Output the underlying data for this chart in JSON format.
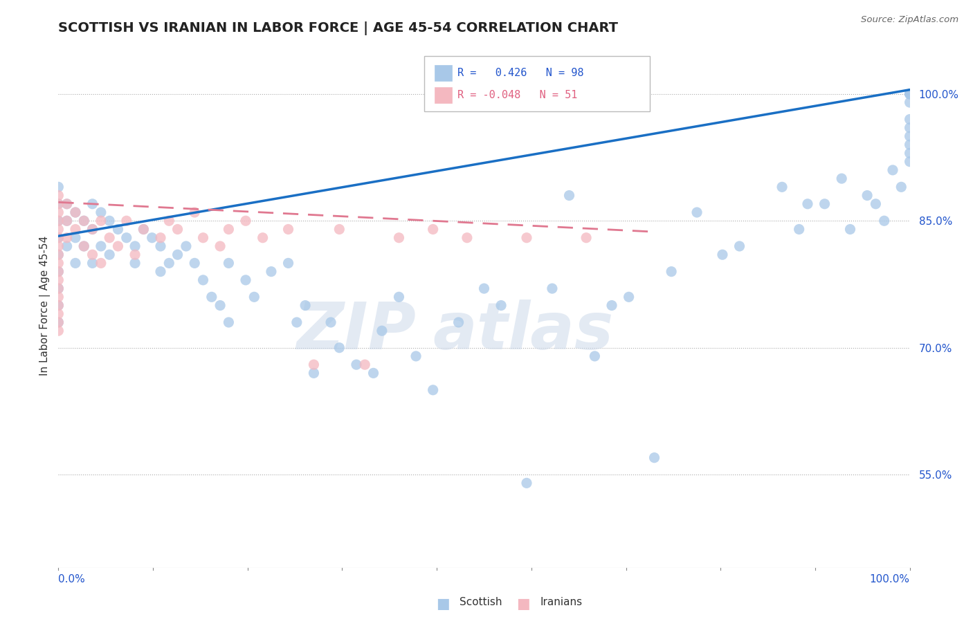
{
  "title": "SCOTTISH VS IRANIAN IN LABOR FORCE | AGE 45-54 CORRELATION CHART",
  "source": "Source: ZipAtlas.com",
  "ylabel": "In Labor Force | Age 45-54",
  "xmin": 0.0,
  "xmax": 1.0,
  "ymin": 0.44,
  "ymax": 1.06,
  "watermark_zip": "ZIP",
  "watermark_atlas": "atlas",
  "blue_R": 0.426,
  "blue_N": 98,
  "pink_R": -0.048,
  "pink_N": 51,
  "blue_color": "#a8c8e8",
  "pink_color": "#f4b8c0",
  "blue_line_color": "#1a6fc4",
  "pink_line_color": "#e07890",
  "legend_label_blue": "Scottish",
  "legend_label_pink": "Iranians",
  "ytick_positions": [
    0.55,
    0.7,
    0.85,
    1.0
  ],
  "ytick_labels": [
    "55.0%",
    "70.0%",
    "85.0%",
    "100.0%"
  ],
  "blue_line_x0": 0.0,
  "blue_line_x1": 1.0,
  "blue_line_y0": 0.832,
  "blue_line_y1": 1.005,
  "pink_line_x0": 0.0,
  "pink_line_x1": 0.7,
  "pink_line_y0": 0.872,
  "pink_line_y1": 0.837,
  "blue_scatter_x": [
    0.0,
    0.0,
    0.0,
    0.0,
    0.0,
    0.0,
    0.0,
    0.0,
    0.0,
    0.01,
    0.01,
    0.01,
    0.02,
    0.02,
    0.02,
    0.03,
    0.03,
    0.04,
    0.04,
    0.04,
    0.05,
    0.05,
    0.06,
    0.06,
    0.07,
    0.08,
    0.09,
    0.09,
    0.1,
    0.11,
    0.12,
    0.12,
    0.13,
    0.14,
    0.15,
    0.16,
    0.17,
    0.18,
    0.19,
    0.2,
    0.2,
    0.22,
    0.23,
    0.25,
    0.27,
    0.28,
    0.29,
    0.3,
    0.32,
    0.33,
    0.35,
    0.37,
    0.38,
    0.4,
    0.42,
    0.44,
    0.47,
    0.5,
    0.52,
    0.55,
    0.58,
    0.6,
    0.63,
    0.65,
    0.67,
    0.7,
    0.72,
    0.75,
    0.78,
    0.8,
    0.85,
    0.87,
    0.88,
    0.9,
    0.92,
    0.93,
    0.95,
    0.96,
    0.97,
    0.98,
    0.99,
    1.0,
    1.0,
    1.0,
    1.0,
    1.0,
    1.0,
    1.0,
    1.0,
    1.0,
    1.0
  ],
  "blue_scatter_y": [
    0.89,
    0.87,
    0.85,
    0.83,
    0.81,
    0.79,
    0.77,
    0.75,
    0.73,
    0.87,
    0.85,
    0.82,
    0.86,
    0.83,
    0.8,
    0.85,
    0.82,
    0.87,
    0.84,
    0.8,
    0.86,
    0.82,
    0.85,
    0.81,
    0.84,
    0.83,
    0.82,
    0.8,
    0.84,
    0.83,
    0.82,
    0.79,
    0.8,
    0.81,
    0.82,
    0.8,
    0.78,
    0.76,
    0.75,
    0.8,
    0.73,
    0.78,
    0.76,
    0.79,
    0.8,
    0.73,
    0.75,
    0.67,
    0.73,
    0.7,
    0.68,
    0.67,
    0.72,
    0.76,
    0.69,
    0.65,
    0.73,
    0.77,
    0.75,
    0.54,
    0.77,
    0.88,
    0.69,
    0.75,
    0.76,
    0.57,
    0.79,
    0.86,
    0.81,
    0.82,
    0.89,
    0.84,
    0.87,
    0.87,
    0.9,
    0.84,
    0.88,
    0.87,
    0.85,
    0.91,
    0.89,
    0.92,
    0.96,
    0.95,
    0.93,
    0.97,
    0.94,
    0.99,
    1.0,
    1.0,
    1.0
  ],
  "pink_scatter_x": [
    0.0,
    0.0,
    0.0,
    0.0,
    0.0,
    0.0,
    0.0,
    0.0,
    0.0,
    0.0,
    0.0,
    0.0,
    0.0,
    0.0,
    0.0,
    0.0,
    0.0,
    0.01,
    0.01,
    0.01,
    0.02,
    0.02,
    0.03,
    0.03,
    0.04,
    0.04,
    0.05,
    0.05,
    0.06,
    0.07,
    0.08,
    0.09,
    0.1,
    0.12,
    0.13,
    0.14,
    0.16,
    0.17,
    0.19,
    0.2,
    0.22,
    0.24,
    0.27,
    0.3,
    0.33,
    0.36,
    0.4,
    0.44,
    0.48,
    0.55,
    0.62
  ],
  "pink_scatter_y": [
    0.88,
    0.87,
    0.86,
    0.85,
    0.84,
    0.83,
    0.82,
    0.81,
    0.8,
    0.79,
    0.78,
    0.77,
    0.76,
    0.75,
    0.74,
    0.73,
    0.72,
    0.87,
    0.85,
    0.83,
    0.86,
    0.84,
    0.85,
    0.82,
    0.84,
    0.81,
    0.85,
    0.8,
    0.83,
    0.82,
    0.85,
    0.81,
    0.84,
    0.83,
    0.85,
    0.84,
    0.86,
    0.83,
    0.82,
    0.84,
    0.85,
    0.83,
    0.84,
    0.68,
    0.84,
    0.68,
    0.83,
    0.84,
    0.83,
    0.83,
    0.83
  ]
}
